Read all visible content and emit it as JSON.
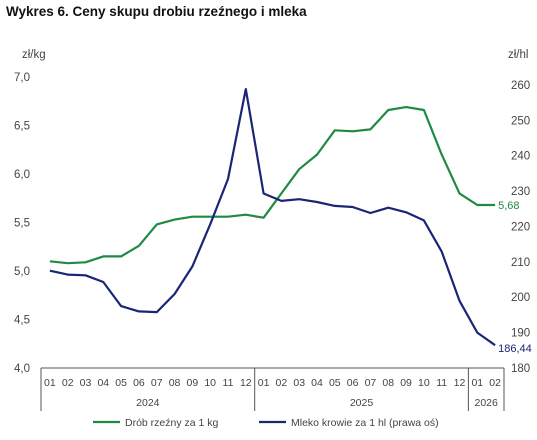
{
  "title": "Wykres 6. Ceny skupu drobiu rzeźnego i mleka",
  "chart_data": {
    "type": "line",
    "title": "Wykres 6. Ceny skupu drobiu rzeźnego i mleka",
    "categories": [
      "01",
      "02",
      "03",
      "04",
      "05",
      "06",
      "07",
      "08",
      "09",
      "10",
      "11",
      "12",
      "01",
      "02",
      "03",
      "04",
      "05",
      "06",
      "07",
      "08",
      "09",
      "10",
      "11",
      "12",
      "01",
      "02"
    ],
    "years": [
      {
        "label": "2024",
        "span": 12
      },
      {
        "label": "2025",
        "span": 12
      },
      {
        "label": "2026",
        "span": 2
      }
    ],
    "left_axis": {
      "unit": "zł/kg",
      "ticks": [
        "4,0",
        "4,5",
        "5,0",
        "5,5",
        "6,0",
        "6,5",
        "7,0"
      ],
      "range": [
        4.0,
        7.0
      ]
    },
    "right_axis": {
      "unit": "zł/hl",
      "ticks": [
        "180",
        "190",
        "200",
        "210",
        "220",
        "230",
        "240",
        "250",
        "260"
      ],
      "range": [
        180,
        262.22
      ]
    },
    "series": [
      {
        "name": "Drób rzeźny za 1 kg",
        "axis": "left",
        "color": "#1e8a44",
        "values": [
          5.1,
          5.08,
          5.09,
          5.15,
          5.15,
          5.26,
          5.48,
          5.53,
          5.56,
          5.56,
          5.56,
          5.58,
          5.55,
          5.8,
          6.05,
          6.2,
          6.45,
          6.44,
          6.46,
          6.66,
          6.69,
          6.66,
          6.2,
          5.8,
          5.68,
          5.68
        ],
        "end_label": "5,68"
      },
      {
        "name": "Mleko krowie za 1 hl (prawa oś)",
        "axis": "right",
        "color": "#1a2674",
        "values": [
          207.5,
          206.4,
          206.2,
          204.3,
          197.5,
          196.0,
          195.8,
          200.9,
          208.7,
          220.6,
          233.4,
          258.8,
          229.3,
          227.2,
          227.7,
          226.9,
          225.8,
          225.5,
          223.8,
          225.3,
          224.0,
          221.7,
          212.9,
          199.0,
          190.0,
          186.44
        ],
        "end_label": "186,44"
      }
    ],
    "legend_position": "bottom",
    "grid": false
  }
}
